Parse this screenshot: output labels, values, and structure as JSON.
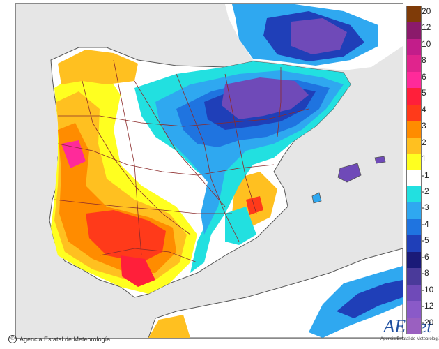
{
  "credit": {
    "symbol": "©",
    "text": "Agencia Estatal de Meteorología"
  },
  "logo": {
    "word": "AEmet",
    "subtitle": "Agencia Estatal de Meteorología"
  },
  "legend": {
    "labels": [
      "20",
      "12",
      "10",
      "8",
      "6",
      "5",
      "4",
      "3",
      "2",
      "1",
      "-1",
      "-2",
      "-3",
      "-4",
      "-5",
      "-6",
      "-8",
      "-10",
      "-12",
      "-20"
    ],
    "colors": [
      "#7f3b08",
      "#8b1a6b",
      "#c21d8a",
      "#e0248d",
      "#ff2a9a",
      "#ff1f3a",
      "#ff3a1a",
      "#ff8c00",
      "#ffc020",
      "#ffff20",
      "#ffffff",
      "#22e0e0",
      "#2fa8f0",
      "#1f74e0",
      "#1f3fb8",
      "#1a1a78",
      "#4a3a9a",
      "#6f4ab8",
      "#8a5ac8",
      "#9a60c0"
    ]
  },
  "colors": {
    "sea": "#e6e6e6",
    "land_neutral": "#ffffff",
    "borders": "#8b2a2a",
    "coast": "#555555"
  }
}
